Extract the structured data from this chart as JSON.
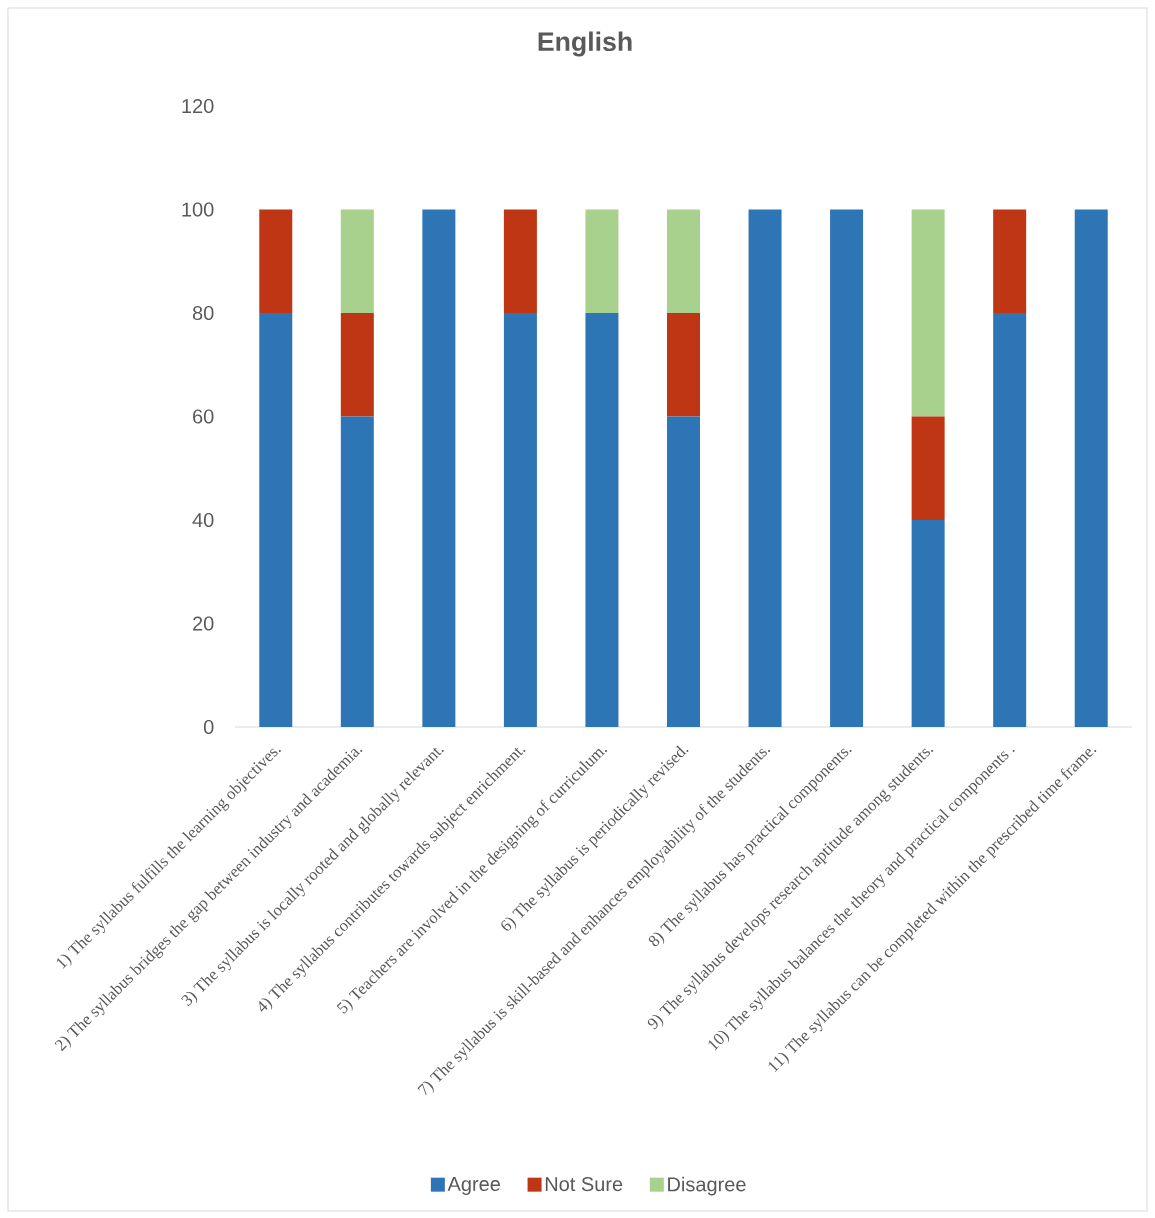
{
  "chart_data": {
    "type": "bar",
    "stacked": true,
    "title": "English",
    "categories": [
      "1) The syllabus fulfills the learning objectives.",
      "2) The syllabus bridges the gap between industry and academia.",
      "3) The syllabus is locally rooted and globally relevant.",
      "4) The syllabus contributes towards subject enrichment.",
      "5) Teachers are involved in the designing of curriculum.",
      "6) The syllabus is periodically revised.",
      "7) The syllabus is skill-based and enhances employability of the students.",
      "8) The syllabus has practical components.",
      "9) The syllabus develops research aptitude among students.",
      "10) The syllabus balances the theory and practical components .",
      "11) The syllabus can be completed within the prescribed time frame."
    ],
    "series": [
      {
        "name": "Agree",
        "color": "#2e75b6",
        "values": [
          80,
          60,
          100,
          80,
          80,
          60,
          100,
          100,
          40,
          80,
          100
        ]
      },
      {
        "name": "Not Sure",
        "color": "#be3614",
        "values": [
          20,
          20,
          0,
          20,
          0,
          20,
          0,
          0,
          20,
          20,
          0
        ]
      },
      {
        "name": "Disagree",
        "color": "#a9d18e",
        "values": [
          0,
          20,
          0,
          0,
          20,
          20,
          0,
          0,
          40,
          0,
          0
        ]
      }
    ],
    "ylim": [
      0,
      120
    ],
    "yticks": [
      0,
      20,
      40,
      60,
      80,
      100,
      120
    ],
    "legend": "bottom"
  }
}
